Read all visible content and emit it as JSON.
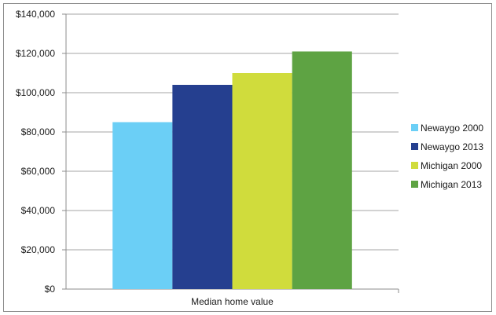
{
  "chart_data": {
    "type": "bar",
    "categories": [
      "Median home value"
    ],
    "series": [
      {
        "name": "Newaygo 2000",
        "values": [
          85000
        ],
        "color": "#6bcff6"
      },
      {
        "name": "Newaygo 2013",
        "values": [
          104000
        ],
        "color": "#253f8f"
      },
      {
        "name": "Michigan 2000",
        "values": [
          110000
        ],
        "color": "#d0dc3c"
      },
      {
        "name": "Michigan 2013",
        "values": [
          121000
        ],
        "color": "#5ea343"
      }
    ],
    "ylim": [
      0,
      140000
    ],
    "yticks": [
      0,
      20000,
      40000,
      60000,
      80000,
      100000,
      120000,
      140000
    ],
    "ytick_labels": [
      "$0",
      "$20,000",
      "$40,000",
      "$60,000",
      "$80,000",
      "$100,000",
      "$120,000",
      "$140,000"
    ],
    "grid": true,
    "legend_position": "right",
    "title": "",
    "xlabel": "",
    "ylabel": ""
  }
}
